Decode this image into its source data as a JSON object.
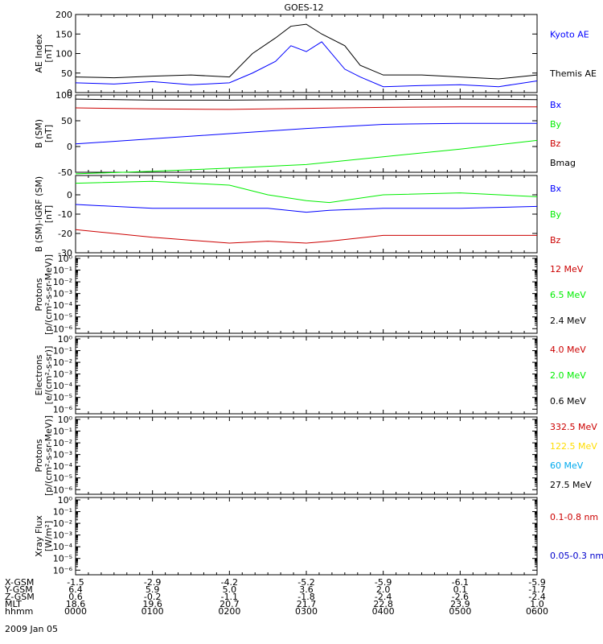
{
  "title": "GOES-12",
  "date_label": "2009 Jan 05",
  "time_axis": {
    "ticks": [
      "0000",
      "0100",
      "0200",
      "0300",
      "0400",
      "0500",
      "0600"
    ],
    "rows": [
      {
        "label": "X-GSM",
        "values": [
          "-1.5",
          "-2.9",
          "-4.2",
          "-5.2",
          "-5.9",
          "-6.1",
          "-5.9"
        ]
      },
      {
        "label": "Y-GSM",
        "values": [
          "6.4",
          "5.9",
          "5.0",
          "3.6",
          "2.0",
          "0.1",
          "-1.7"
        ]
      },
      {
        "label": "Z-GSM",
        "values": [
          "0.6",
          "-0.2",
          "-1.1",
          "-1.8",
          "-2.4",
          "-2.6",
          "-2.4"
        ]
      },
      {
        "label": "MLT",
        "values": [
          "18.6",
          "19.6",
          "20.7",
          "21.7",
          "22.8",
          "23.9",
          "1.0"
        ]
      },
      {
        "label": "hhmm",
        "values": [
          "0000",
          "0100",
          "0200",
          "0300",
          "0400",
          "0500",
          "0600"
        ]
      }
    ]
  },
  "chart_data": [
    {
      "type": "line",
      "panel": "ae",
      "ylabel": "AE Index\n[nT]",
      "ylim": [
        0,
        200
      ],
      "yticks": [
        "200",
        "150",
        "100",
        "50",
        "0"
      ],
      "log": false,
      "x": [
        0,
        0.5,
        1,
        1.5,
        2,
        2.3,
        2.6,
        2.8,
        3,
        3.2,
        3.5,
        3.7,
        4,
        4.5,
        5,
        5.5,
        6
      ],
      "series": [
        {
          "name": "Kyoto AE",
          "color": "#0000ff",
          "values": [
            25,
            22,
            28,
            20,
            25,
            50,
            80,
            120,
            105,
            130,
            60,
            40,
            15,
            18,
            20,
            15,
            30
          ]
        },
        {
          "name": "Themis AE",
          "color": "#000000",
          "values": [
            40,
            38,
            42,
            45,
            40,
            100,
            140,
            170,
            175,
            150,
            120,
            70,
            45,
            45,
            40,
            35,
            45
          ]
        }
      ]
    },
    {
      "type": "line",
      "panel": "b_sm",
      "ylabel": "B (SM)\n[nT]",
      "ylim": [
        -50,
        100
      ],
      "yticks": [
        "100",
        "50",
        "0",
        "-50"
      ],
      "log": false,
      "x": [
        0,
        1,
        2,
        3,
        4,
        5,
        6
      ],
      "series": [
        {
          "name": "Bx",
          "color": "#0000ff",
          "values": [
            5,
            15,
            25,
            35,
            43,
            45,
            45
          ]
        },
        {
          "name": "By",
          "color": "#00ee00",
          "values": [
            -53,
            -48,
            -42,
            -35,
            -20,
            -5,
            12
          ]
        },
        {
          "name": "Bz",
          "color": "#cc0000",
          "values": [
            75,
            73,
            72,
            74,
            76,
            77,
            77
          ]
        },
        {
          "name": "Bmag",
          "color": "#000000",
          "values": [
            92,
            90,
            90,
            91,
            91,
            92,
            91
          ]
        }
      ]
    },
    {
      "type": "line",
      "panel": "b_minus_igrf",
      "ylabel": "B (SM)-IGRF (SM)\n[nT]",
      "ylim": [
        -30,
        10
      ],
      "yticks": [
        "0",
        "-10",
        "-20",
        "-30"
      ],
      "log": false,
      "x": [
        0,
        1,
        2,
        2.5,
        3,
        3.3,
        4,
        5,
        6
      ],
      "series": [
        {
          "name": "Bx",
          "color": "#0000ff",
          "values": [
            -5,
            -7,
            -7,
            -7,
            -9,
            -8,
            -7,
            -7,
            -6
          ]
        },
        {
          "name": "By",
          "color": "#00ee00",
          "values": [
            6,
            7,
            5,
            0,
            -3,
            -4,
            0,
            1,
            -1
          ]
        },
        {
          "name": "Bz",
          "color": "#cc0000",
          "values": [
            -18,
            -22,
            -25,
            -24,
            -25,
            -24,
            -21,
            -21,
            -21
          ]
        }
      ]
    },
    {
      "type": "line",
      "panel": "protons_low",
      "ylabel": "Protons\n[p/(cm²-s-sr-MeV)]",
      "log": true,
      "yticks": [
        "10⁰",
        "10⁻¹",
        "10⁻²",
        "10⁻³",
        "10⁻⁴",
        "10⁻⁵",
        "10⁻⁶"
      ],
      "series": [
        {
          "name": "12 MeV",
          "color": "#cc0000",
          "values": []
        },
        {
          "name": "6.5 MeV",
          "color": "#00ee00",
          "values": []
        },
        {
          "name": "2.4 MeV",
          "color": "#000000",
          "values": []
        }
      ]
    },
    {
      "type": "line",
      "panel": "electrons",
      "ylabel": "Electrons\n[e/(cm²-s-sr)]",
      "log": true,
      "yticks": [
        "10⁰",
        "10⁻¹",
        "10⁻²",
        "10⁻³",
        "10⁻⁴",
        "10⁻⁵",
        "10⁻⁶"
      ],
      "series": [
        {
          "name": "4.0 MeV",
          "color": "#cc0000",
          "values": []
        },
        {
          "name": "2.0 MeV",
          "color": "#00ee00",
          "values": []
        },
        {
          "name": "0.6 MeV",
          "color": "#000000",
          "values": []
        }
      ]
    },
    {
      "type": "line",
      "panel": "protons_high",
      "ylabel": "Protons\n[p/(cm²-s-sr-MeV)]",
      "log": true,
      "yticks": [
        "10⁰",
        "10⁻¹",
        "10⁻²",
        "10⁻³",
        "10⁻⁴",
        "10⁻⁵",
        "10⁻⁶"
      ],
      "series": [
        {
          "name": "332.5 MeV",
          "color": "#cc0000",
          "values": []
        },
        {
          "name": "122.5 MeV",
          "color": "#ffdd00",
          "values": []
        },
        {
          "name": "60 MeV",
          "color": "#00aaee",
          "values": []
        },
        {
          "name": "27.5 MeV",
          "color": "#000000",
          "values": []
        }
      ]
    },
    {
      "type": "line",
      "panel": "xray",
      "ylabel": "Xray Flux\n[W/m²]",
      "log": true,
      "yticks": [
        "10⁰",
        "10⁻¹",
        "10⁻²",
        "10⁻³",
        "10⁻⁴",
        "10⁻⁵",
        "10⁻⁶"
      ],
      "series": [
        {
          "name": "0.1-0.8 nm",
          "color": "#cc0000",
          "values": []
        },
        {
          "name": "0.05-0.3 nm",
          "color": "#0000cc",
          "values": []
        }
      ]
    }
  ]
}
